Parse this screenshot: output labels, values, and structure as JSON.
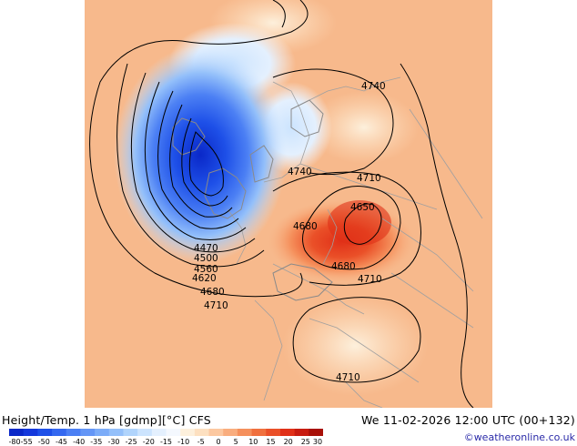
{
  "map": {
    "contour_labels": [
      {
        "text": "4740",
        "id": "4740-ne"
      },
      {
        "text": "4740",
        "id": "4740-mid"
      },
      {
        "text": "4710",
        "id": "4710-east"
      },
      {
        "text": "4650",
        "id": "4650-warm"
      },
      {
        "text": "4680",
        "id": "4680-mid"
      },
      {
        "text": "4680",
        "id": "4680-warm"
      },
      {
        "text": "4710",
        "id": "4710-se"
      },
      {
        "text": "4470",
        "id": "4470"
      },
      {
        "text": "4500",
        "id": "4500"
      },
      {
        "text": "4560",
        "id": "4560"
      },
      {
        "text": "4620",
        "id": "4620"
      },
      {
        "text": "4680",
        "id": "4680-sw"
      },
      {
        "text": "4710",
        "id": "4710-sw"
      },
      {
        "text": "4710",
        "id": "4710-south"
      }
    ],
    "colors": {
      "ocean_bg": "#ffffff",
      "warm_base": "#f7b98c",
      "cold_core": "#1a40e0",
      "hot_core": "#e8300c",
      "border_line": "#a0a0a0",
      "contour_line": "#000000"
    }
  },
  "footer": {
    "title": "Height/Temp. 1 hPa [gdmp][°C] CFS",
    "datetime": "We 11-02-2026 12:00 UTC (00+132)",
    "credit": "©weatheronline.co.uk"
  },
  "colorbar": {
    "labels": [
      "-80",
      "-55",
      "-50",
      "-45",
      "-40",
      "-35",
      "-30",
      "-25",
      "-20",
      "-15",
      "-10",
      "-5",
      "0",
      "5",
      "10",
      "15",
      "20",
      "25",
      "30"
    ],
    "colors": [
      "#0a28c8",
      "#1438dc",
      "#1e50e8",
      "#3468f0",
      "#4c80f4",
      "#6496f6",
      "#7cacf8",
      "#94c0fa",
      "#b0d4fc",
      "#cce4fe",
      "#e4f0fe",
      "#f4f8fe",
      "#fdf0dc",
      "#fde0c0",
      "#fcc8a0",
      "#f9ad7e",
      "#f5905c",
      "#f0703e",
      "#ea5028",
      "#e03018",
      "#c81c10",
      "#a81008"
    ]
  }
}
